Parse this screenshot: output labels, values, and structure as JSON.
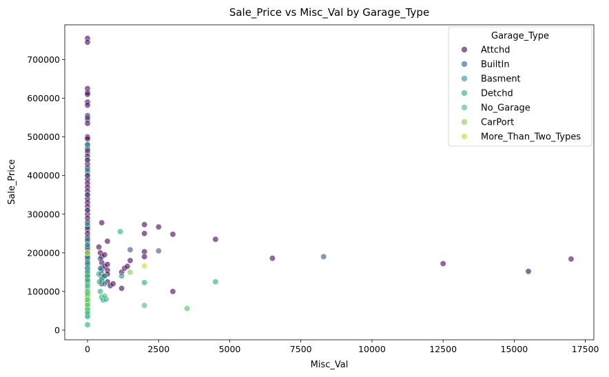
{
  "chart_data": {
    "type": "scatter",
    "title": "Sale_Price vs Misc_Val by Garage_Type",
    "xlabel": "Misc_Val",
    "ylabel": "Sale_Price",
    "xlim": [
      -800,
      17800
    ],
    "ylim": [
      -25000,
      790000
    ],
    "xticks": [
      0,
      2500,
      5000,
      7500,
      10000,
      12500,
      15000,
      17500
    ],
    "yticks": [
      0,
      100000,
      200000,
      300000,
      400000,
      500000,
      600000,
      700000
    ],
    "grid": false,
    "legend": {
      "title": "Garage_Type",
      "placement": "top-right"
    },
    "point_alpha": 0.6,
    "series": [
      {
        "name": "Attchd",
        "color": "#440154",
        "points": [
          [
            0,
            755000
          ],
          [
            0,
            745000
          ],
          [
            0,
            625000
          ],
          [
            0,
            615000
          ],
          [
            0,
            610000
          ],
          [
            0,
            590000
          ],
          [
            0,
            582000
          ],
          [
            0,
            555000
          ],
          [
            0,
            545000
          ],
          [
            0,
            535000
          ],
          [
            0,
            500000
          ],
          [
            0,
            495000
          ],
          [
            0,
            480000
          ],
          [
            0,
            470000
          ],
          [
            0,
            460000
          ],
          [
            0,
            450000
          ],
          [
            0,
            440000
          ],
          [
            0,
            430000
          ],
          [
            0,
            420000
          ],
          [
            0,
            410000
          ],
          [
            0,
            400000
          ],
          [
            0,
            390000
          ],
          [
            0,
            380000
          ],
          [
            0,
            370000
          ],
          [
            0,
            360000
          ],
          [
            0,
            350000
          ],
          [
            0,
            340000
          ],
          [
            0,
            330000
          ],
          [
            0,
            320000
          ],
          [
            0,
            310000
          ],
          [
            0,
            300000
          ],
          [
            0,
            290000
          ],
          [
            0,
            280000
          ],
          [
            0,
            270000
          ],
          [
            0,
            260000
          ],
          [
            0,
            250000
          ],
          [
            0,
            240000
          ],
          [
            0,
            230000
          ],
          [
            0,
            220000
          ],
          [
            0,
            210000
          ],
          [
            0,
            200000
          ],
          [
            0,
            190000
          ],
          [
            0,
            180000
          ],
          [
            0,
            170000
          ],
          [
            0,
            160000
          ],
          [
            0,
            150000
          ],
          [
            0,
            140000
          ],
          [
            0,
            130000
          ],
          [
            400,
            215000
          ],
          [
            450,
            200000
          ],
          [
            500,
            278000
          ],
          [
            500,
            190000
          ],
          [
            500,
            175000
          ],
          [
            500,
            160000
          ],
          [
            500,
            145000
          ],
          [
            500,
            135000
          ],
          [
            500,
            120000
          ],
          [
            600,
            195000
          ],
          [
            600,
            165000
          ],
          [
            600,
            140000
          ],
          [
            700,
            230000
          ],
          [
            700,
            170000
          ],
          [
            700,
            155000
          ],
          [
            700,
            145000
          ],
          [
            700,
            125000
          ],
          [
            800,
            115000
          ],
          [
            900,
            120000
          ],
          [
            1200,
            150000
          ],
          [
            1200,
            108000
          ],
          [
            1300,
            160000
          ],
          [
            1400,
            165000
          ],
          [
            1500,
            180000
          ],
          [
            2000,
            273000
          ],
          [
            2000,
            250000
          ],
          [
            2000,
            203000
          ],
          [
            2000,
            190000
          ],
          [
            2500,
            267000
          ],
          [
            3000,
            248000
          ],
          [
            3000,
            100000
          ],
          [
            4500,
            235000
          ],
          [
            6500,
            186000
          ],
          [
            12500,
            172000
          ],
          [
            15500,
            152000
          ],
          [
            17000,
            184000
          ]
        ]
      },
      {
        "name": "BuiltIn",
        "color": "#3b528b",
        "points": [
          [
            0,
            550000
          ],
          [
            0,
            465000
          ],
          [
            0,
            440000
          ],
          [
            0,
            400000
          ],
          [
            0,
            350000
          ],
          [
            0,
            310000
          ],
          [
            0,
            265000
          ],
          [
            0,
            215000
          ],
          [
            0,
            185000
          ],
          [
            0,
            160000
          ],
          [
            450,
            185000
          ],
          [
            480,
            155000
          ],
          [
            550,
            140000
          ],
          [
            1500,
            208000
          ],
          [
            2500,
            205000
          ],
          [
            8300,
            190000
          ]
        ]
      },
      {
        "name": "Basment",
        "color": "#21918c",
        "points": [
          [
            0,
            235000
          ],
          [
            0,
            190000
          ],
          [
            0,
            170000
          ],
          [
            0,
            145000
          ],
          [
            0,
            120000
          ],
          [
            0,
            100000
          ],
          [
            0,
            80000
          ],
          [
            450,
            160000
          ],
          [
            500,
            130000
          ],
          [
            600,
            120000
          ],
          [
            1200,
            140000
          ]
        ]
      },
      {
        "name": "Detchd",
        "color": "#22a884",
        "points": [
          [
            0,
            480000
          ],
          [
            0,
            415000
          ],
          [
            0,
            275000
          ],
          [
            0,
            220000
          ],
          [
            0,
            200000
          ],
          [
            0,
            175000
          ],
          [
            0,
            155000
          ],
          [
            0,
            140000
          ],
          [
            0,
            125000
          ],
          [
            0,
            110000
          ],
          [
            0,
            95000
          ],
          [
            0,
            85000
          ],
          [
            0,
            70000
          ],
          [
            0,
            60000
          ],
          [
            0,
            50000
          ],
          [
            0,
            40000
          ],
          [
            0,
            35000
          ],
          [
            0,
            14000
          ],
          [
            400,
            145000
          ],
          [
            420,
            125000
          ],
          [
            450,
            100000
          ],
          [
            500,
            85000
          ],
          [
            550,
            78000
          ],
          [
            600,
            140000
          ],
          [
            650,
            80000
          ],
          [
            1150,
            255000
          ],
          [
            2000,
            123000
          ],
          [
            4500,
            125000
          ]
        ]
      },
      {
        "name": "No_Garage",
        "color": "#44bf70",
        "points": [
          [
            0,
            150000
          ],
          [
            0,
            130000
          ],
          [
            0,
            115000
          ],
          [
            0,
            100000
          ],
          [
            0,
            90000
          ],
          [
            0,
            80000
          ],
          [
            0,
            72000
          ],
          [
            0,
            65000
          ],
          [
            0,
            55000
          ],
          [
            0,
            45000
          ],
          [
            600,
            88000
          ],
          [
            2000,
            64000
          ],
          [
            3500,
            56000
          ]
        ]
      },
      {
        "name": "CarPort",
        "color": "#7ad151",
        "points": [
          [
            0,
            95000
          ],
          [
            0,
            78000
          ],
          [
            0,
            65000
          ],
          [
            1500,
            150000
          ]
        ]
      },
      {
        "name": "More_Than_Two_Types",
        "color": "#bddf26",
        "points": [
          [
            0,
            200000
          ],
          [
            2000,
            166000
          ]
        ]
      }
    ]
  }
}
